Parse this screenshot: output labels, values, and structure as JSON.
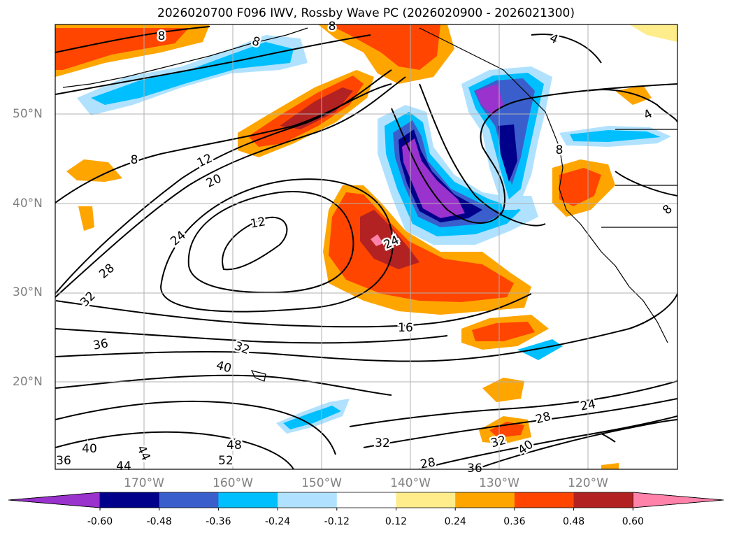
{
  "title": "2026020700 F096 IWV, Rossby Wave PC (2026020900 - 2026021300)",
  "lat_labels": [
    "50°N",
    "40°N",
    "30°N",
    "20°N"
  ],
  "lon_labels": [
    "170°W",
    "160°W",
    "150°W",
    "140°W",
    "130°W",
    "120°W"
  ],
  "colorbar": {
    "ticks": [
      "-0.60",
      "-0.48",
      "-0.36",
      "-0.24",
      "-0.12",
      "0.12",
      "0.24",
      "0.36",
      "0.48",
      "0.60"
    ],
    "colors": [
      "#9a32cd",
      "#00008b",
      "#3a5fcd",
      "#00bfff",
      "#b0e2ff",
      "#ffffff",
      "#ffec8b",
      "#ffa500",
      "#ff4500",
      "#b22222",
      "#ff82ab"
    ]
  },
  "contour_labels": [
    "8",
    "8",
    "4",
    "4",
    "12",
    "20",
    "8",
    "12",
    "24",
    "24",
    "28",
    "32",
    "16",
    "36",
    "32",
    "40",
    "24",
    "28",
    "32",
    "40",
    "48",
    "32",
    "52",
    "28",
    "40",
    "36",
    "44",
    "44",
    "36",
    "8",
    "8",
    "8"
  ]
}
